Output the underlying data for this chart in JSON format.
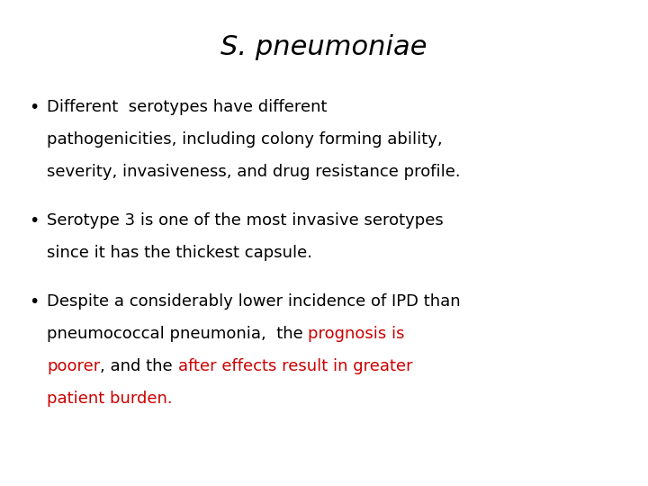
{
  "title": "S. pneumoniae",
  "background_color": "#ffffff",
  "text_color": "#000000",
  "red_color": "#cc0000",
  "title_fontsize": 22,
  "bullet_fontsize": 13,
  "font_family": "DejaVu Sans Condensed",
  "bullet1_lines": [
    "Different  serotypes have different",
    "pathogenicities, including colony forming ability,",
    "severity, invasiveness, and drug resistance profile."
  ],
  "bullet2_lines": [
    "Serotype 3 is one of the most invasive serotypes",
    "since it has the thickest capsule."
  ],
  "bullet3_line1": "Despite a considerably lower incidence of IPD than",
  "bullet3_line2_black": "pneumococcal pneumonia,  the ",
  "bullet3_line2_red": "prognosis is",
  "bullet3_line3_red1": "poorer",
  "bullet3_line3_black": ", and the ",
  "bullet3_line3_red2": "after effects result in greater",
  "bullet3_line4_red": "patient burden."
}
